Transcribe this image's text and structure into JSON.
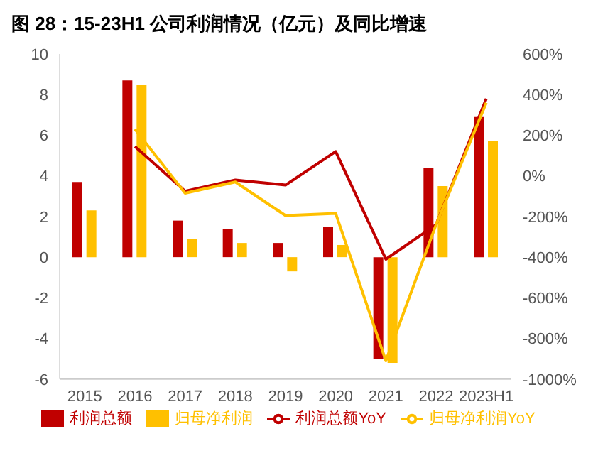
{
  "chart_data": {
    "type": "bar",
    "title": "图 28：15-23H1 公司利润情况（亿元）及同比增速",
    "categories": [
      "2015",
      "2016",
      "2017",
      "2018",
      "2019",
      "2020",
      "2021",
      "2022",
      "2023H1"
    ],
    "series": [
      {
        "name": "利润总额",
        "color": "#c00000",
        "values": [
          3.7,
          8.7,
          1.8,
          1.4,
          0.7,
          1.5,
          -5.0,
          4.4,
          6.9
        ]
      },
      {
        "name": "归母净利润",
        "color": "#ffc000",
        "values": [
          2.3,
          8.5,
          0.9,
          0.7,
          -0.7,
          0.6,
          -5.2,
          3.5,
          5.7
        ]
      },
      {
        "name": "利润总额YoY",
        "type": "line",
        "axis": "y2",
        "color": "#c00000",
        "values": [
          null,
          145,
          -75,
          -20,
          -45,
          120,
          -410,
          -240,
          380
        ]
      },
      {
        "name": "归母净利润YoY",
        "type": "line",
        "axis": "y2",
        "color": "#ffc000",
        "values": [
          null,
          230,
          -85,
          -30,
          -195,
          -185,
          -910,
          -240,
          360
        ]
      }
    ],
    "ylim": [
      -6,
      10
    ],
    "yticks": [
      -6,
      -4,
      -2,
      0,
      2,
      4,
      6,
      8,
      10
    ],
    "y2lim": [
      -1000,
      600
    ],
    "y2ticks": [
      {
        "value": -1000,
        "label": "-1000%"
      },
      {
        "value": -800,
        "label": "-800%"
      },
      {
        "value": -600,
        "label": "-600%"
      },
      {
        "value": -400,
        "label": "-400%"
      },
      {
        "value": -200,
        "label": "-200%"
      },
      {
        "value": 0,
        "label": "0%"
      },
      {
        "value": 200,
        "label": "200%"
      },
      {
        "value": 400,
        "label": "400%"
      },
      {
        "value": 600,
        "label": "600%"
      }
    ],
    "grid": false,
    "legend": "bottom",
    "marker": "none",
    "line_style": "solid"
  }
}
